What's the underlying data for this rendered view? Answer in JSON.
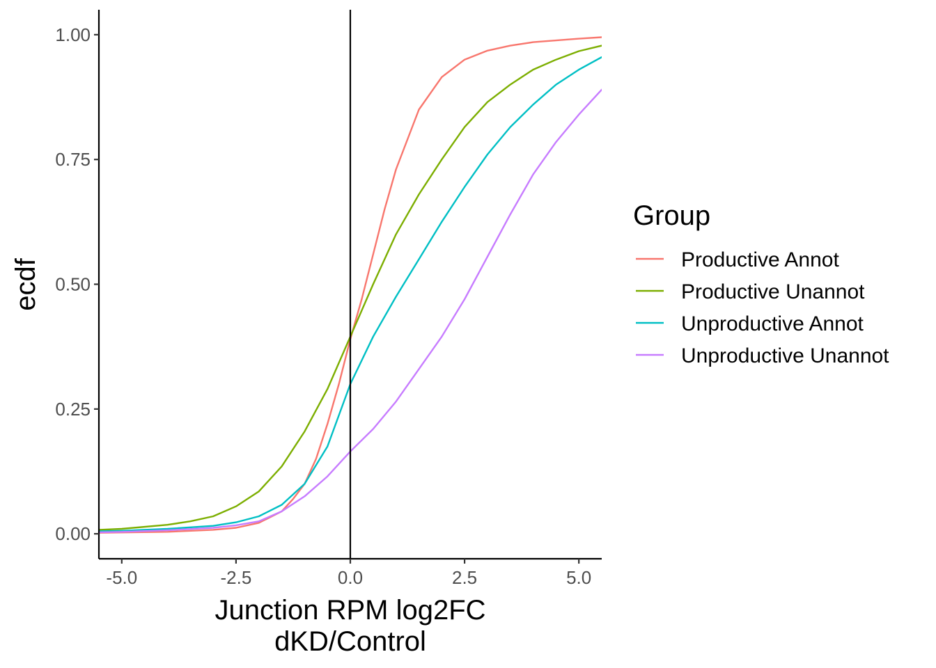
{
  "chart_data": {
    "type": "line",
    "title": "",
    "xlabel": [
      "Junction RPM log2FC",
      "dKD/Control"
    ],
    "ylabel": "ecdf",
    "xlim": [
      -5.5,
      5.5
    ],
    "ylim": [
      -0.05,
      1.05
    ],
    "x_ticks": [
      -5,
      -2.5,
      0,
      2.5,
      5
    ],
    "x_tick_labels": [
      "-5.0",
      "-2.5",
      "0.0",
      "2.5",
      "5.0"
    ],
    "y_ticks": [
      0,
      0.25,
      0.5,
      0.75,
      1
    ],
    "y_tick_labels": [
      "0.00",
      "0.25",
      "0.50",
      "0.75",
      "1.00"
    ],
    "vline_x": 0,
    "grid": false,
    "legend": {
      "title": "Group",
      "placement": "right"
    },
    "series": [
      {
        "name": "Productive Annot",
        "color": "#F8766D",
        "x": [
          -5.5,
          -4,
          -3,
          -2.5,
          -2,
          -1.5,
          -1.25,
          -1,
          -0.75,
          -0.5,
          -0.25,
          0,
          0.25,
          0.5,
          0.75,
          1,
          1.5,
          2,
          2.5,
          3,
          3.5,
          4,
          5,
          5.5
        ],
        "y": [
          0.002,
          0.004,
          0.008,
          0.012,
          0.022,
          0.045,
          0.07,
          0.1,
          0.15,
          0.22,
          0.3,
          0.39,
          0.47,
          0.56,
          0.65,
          0.73,
          0.85,
          0.915,
          0.95,
          0.968,
          0.978,
          0.985,
          0.992,
          0.995
        ]
      },
      {
        "name": "Productive Unannot",
        "color": "#7CAE00",
        "x": [
          -5.5,
          -5,
          -4,
          -3.5,
          -3,
          -2.5,
          -2,
          -1.5,
          -1,
          -0.5,
          0,
          0.5,
          1,
          1.5,
          2,
          2.5,
          3,
          3.5,
          4,
          4.5,
          5,
          5.5
        ],
        "y": [
          0.008,
          0.01,
          0.018,
          0.025,
          0.035,
          0.055,
          0.085,
          0.135,
          0.205,
          0.29,
          0.395,
          0.5,
          0.6,
          0.68,
          0.75,
          0.815,
          0.865,
          0.9,
          0.93,
          0.95,
          0.967,
          0.978
        ]
      },
      {
        "name": "Unproductive Annot",
        "color": "#00BFC4",
        "x": [
          -5.5,
          -5,
          -4,
          -3,
          -2.5,
          -2,
          -1.5,
          -1,
          -0.5,
          0,
          0.5,
          1,
          1.5,
          2,
          2.5,
          3,
          3.5,
          4,
          4.5,
          5,
          5.5
        ],
        "y": [
          0.005,
          0.006,
          0.01,
          0.016,
          0.023,
          0.035,
          0.058,
          0.1,
          0.175,
          0.3,
          0.395,
          0.475,
          0.55,
          0.625,
          0.695,
          0.76,
          0.815,
          0.86,
          0.9,
          0.93,
          0.955
        ]
      },
      {
        "name": "Unproductive Unannot",
        "color": "#C77CFF",
        "x": [
          -5.5,
          -5,
          -4,
          -3,
          -2.5,
          -2,
          -1.5,
          -1,
          -0.5,
          0,
          0.5,
          1,
          1.5,
          2,
          2.5,
          3,
          3.5,
          4,
          4.5,
          5,
          5.5
        ],
        "y": [
          0.003,
          0.004,
          0.007,
          0.012,
          0.017,
          0.025,
          0.045,
          0.075,
          0.115,
          0.165,
          0.21,
          0.265,
          0.33,
          0.395,
          0.47,
          0.555,
          0.64,
          0.72,
          0.785,
          0.84,
          0.89
        ]
      }
    ]
  }
}
